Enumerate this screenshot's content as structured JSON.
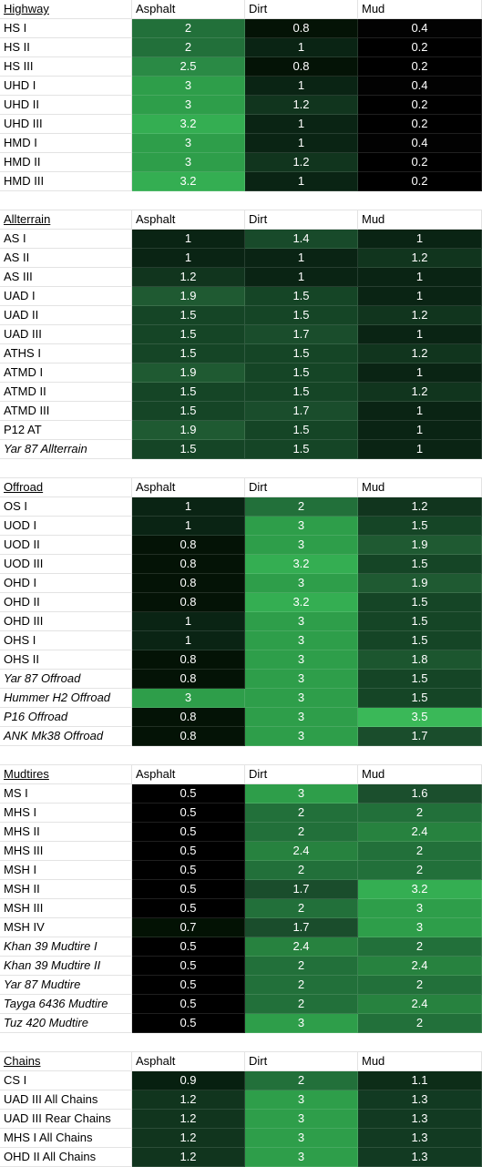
{
  "sections": [
    {
      "title": "Highway",
      "columns": [
        "Asphalt",
        "Dirt",
        "Mud"
      ],
      "rows": [
        {
          "name": "HS I",
          "italic": false,
          "values": [
            "2",
            "0.8",
            "0.4"
          ]
        },
        {
          "name": "HS II",
          "italic": false,
          "values": [
            "2",
            "1",
            "0.2"
          ]
        },
        {
          "name": "HS III",
          "italic": false,
          "values": [
            "2.5",
            "0.8",
            "0.2"
          ]
        },
        {
          "name": "UHD I",
          "italic": false,
          "values": [
            "3",
            "1",
            "0.4"
          ]
        },
        {
          "name": "UHD II",
          "italic": false,
          "values": [
            "3",
            "1.2",
            "0.2"
          ]
        },
        {
          "name": "UHD III",
          "italic": false,
          "values": [
            "3.2",
            "1",
            "0.2"
          ]
        },
        {
          "name": "HMD I",
          "italic": false,
          "values": [
            "3",
            "1",
            "0.4"
          ]
        },
        {
          "name": "HMD II",
          "italic": false,
          "values": [
            "3",
            "1.2",
            "0.2"
          ]
        },
        {
          "name": "HMD III",
          "italic": false,
          "values": [
            "3.2",
            "1",
            "0.2"
          ]
        }
      ]
    },
    {
      "title": "Allterrain",
      "columns": [
        "Asphalt",
        "Dirt",
        "Mud"
      ],
      "rows": [
        {
          "name": "AS I",
          "italic": false,
          "values": [
            "1",
            "1.4",
            "1"
          ]
        },
        {
          "name": "AS II",
          "italic": false,
          "values": [
            "1",
            "1",
            "1.2"
          ]
        },
        {
          "name": "AS III",
          "italic": false,
          "values": [
            "1.2",
            "1",
            "1"
          ]
        },
        {
          "name": "UAD I",
          "italic": false,
          "values": [
            "1.9",
            "1.5",
            "1"
          ]
        },
        {
          "name": "UAD II",
          "italic": false,
          "values": [
            "1.5",
            "1.5",
            "1.2"
          ]
        },
        {
          "name": "UAD III",
          "italic": false,
          "values": [
            "1.5",
            "1.7",
            "1"
          ]
        },
        {
          "name": "ATHS I",
          "italic": false,
          "values": [
            "1.5",
            "1.5",
            "1.2"
          ]
        },
        {
          "name": "ATMD I",
          "italic": false,
          "values": [
            "1.9",
            "1.5",
            "1"
          ]
        },
        {
          "name": "ATMD II",
          "italic": false,
          "values": [
            "1.5",
            "1.5",
            "1.2"
          ]
        },
        {
          "name": "ATMD III",
          "italic": false,
          "values": [
            "1.5",
            "1.7",
            "1"
          ]
        },
        {
          "name": "P12 AT",
          "italic": false,
          "values": [
            "1.9",
            "1.5",
            "1"
          ]
        },
        {
          "name": "Yar 87 Allterrain",
          "italic": true,
          "values": [
            "1.5",
            "1.5",
            "1"
          ]
        }
      ]
    },
    {
      "title": "Offroad",
      "columns": [
        "Asphalt",
        "Dirt",
        "Mud"
      ],
      "rows": [
        {
          "name": "OS I",
          "italic": false,
          "values": [
            "1",
            "2",
            "1.2"
          ]
        },
        {
          "name": "UOD I",
          "italic": false,
          "values": [
            "1",
            "3",
            "1.5"
          ]
        },
        {
          "name": "UOD II",
          "italic": false,
          "values": [
            "0.8",
            "3",
            "1.9"
          ]
        },
        {
          "name": "UOD III",
          "italic": false,
          "values": [
            "0.8",
            "3.2",
            "1.5"
          ]
        },
        {
          "name": "OHD I",
          "italic": false,
          "values": [
            "0.8",
            "3",
            "1.9"
          ]
        },
        {
          "name": "OHD II",
          "italic": false,
          "values": [
            "0.8",
            "3.2",
            "1.5"
          ]
        },
        {
          "name": "OHD III",
          "italic": false,
          "values": [
            "1",
            "3",
            "1.5"
          ]
        },
        {
          "name": "OHS I",
          "italic": false,
          "values": [
            "1",
            "3",
            "1.5"
          ]
        },
        {
          "name": "OHS II",
          "italic": false,
          "values": [
            "0.8",
            "3",
            "1.8"
          ]
        },
        {
          "name": "Yar 87 Offroad",
          "italic": true,
          "values": [
            "0.8",
            "3",
            "1.5"
          ]
        },
        {
          "name": "Hummer H2 Offroad",
          "italic": true,
          "values": [
            "3",
            "3",
            "1.5"
          ]
        },
        {
          "name": "P16 Offroad",
          "italic": true,
          "values": [
            "0.8",
            "3",
            "3.5"
          ]
        },
        {
          "name": "ANK Mk38 Offroad",
          "italic": true,
          "values": [
            "0.8",
            "3",
            "1.7"
          ]
        }
      ]
    },
    {
      "title": "Mudtires",
      "columns": [
        "Asphalt",
        "Dirt",
        "Mud"
      ],
      "rows": [
        {
          "name": "MS I",
          "italic": false,
          "values": [
            "0.5",
            "3",
            "1.6"
          ]
        },
        {
          "name": "MHS I",
          "italic": false,
          "values": [
            "0.5",
            "2",
            "2"
          ]
        },
        {
          "name": "MHS II",
          "italic": false,
          "values": [
            "0.5",
            "2",
            "2.4"
          ]
        },
        {
          "name": "MHS III",
          "italic": false,
          "values": [
            "0.5",
            "2.4",
            "2"
          ]
        },
        {
          "name": "MSH I",
          "italic": false,
          "values": [
            "0.5",
            "2",
            "2"
          ]
        },
        {
          "name": "MSH II",
          "italic": false,
          "values": [
            "0.5",
            "1.7",
            "3.2"
          ]
        },
        {
          "name": "MSH III",
          "italic": false,
          "values": [
            "0.5",
            "2",
            "3"
          ]
        },
        {
          "name": "MSH IV",
          "italic": false,
          "values": [
            "0.7",
            "1.7",
            "3"
          ]
        },
        {
          "name": "Khan 39 Mudtire I",
          "italic": true,
          "values": [
            "0.5",
            "2.4",
            "2"
          ]
        },
        {
          "name": "Khan 39 Mudtire II",
          "italic": true,
          "values": [
            "0.5",
            "2",
            "2.4"
          ]
        },
        {
          "name": "Yar 87 Mudtire",
          "italic": true,
          "values": [
            "0.5",
            "2",
            "2"
          ]
        },
        {
          "name": "Tayga 6436 Mudtire",
          "italic": true,
          "values": [
            "0.5",
            "2",
            "2.4"
          ]
        },
        {
          "name": "Tuz 420 Mudtire",
          "italic": true,
          "values": [
            "0.5",
            "3",
            "2"
          ]
        }
      ]
    },
    {
      "title": "Chains",
      "columns": [
        "Asphalt",
        "Dirt",
        "Mud"
      ],
      "rows": [
        {
          "name": "CS I",
          "italic": false,
          "values": [
            "0.9",
            "2",
            "1.1"
          ]
        },
        {
          "name": "UAD III All Chains",
          "italic": false,
          "values": [
            "1.2",
            "3",
            "1.3"
          ]
        },
        {
          "name": "UAD III Rear Chains",
          "italic": false,
          "values": [
            "1.2",
            "3",
            "1.3"
          ]
        },
        {
          "name": "MHS I All Chains",
          "italic": false,
          "values": [
            "1.2",
            "3",
            "1.3"
          ]
        },
        {
          "name": "OHD II All Chains",
          "italic": false,
          "values": [
            "1.2",
            "3",
            "1.3"
          ]
        }
      ]
    }
  ],
  "heat_colors": {
    "0.2": "#000000",
    "0.4": "#020202",
    "0.5": "#000000",
    "0.7": "#031204",
    "0.8": "#041306",
    "0.9": "#072010",
    "1": "#0a2414",
    "1.1": "#0d2d18",
    "1.2": "#11351e",
    "1.3": "#123a22",
    "1.4": "#184a2a",
    "1.5": "#154526",
    "1.6": "#1b4f2d",
    "1.7": "#1a4d2c",
    "1.8": "#1c562f",
    "1.9": "#1f5a32",
    "2": "#22703a",
    "2.4": "#27823f",
    "2.5": "#2a8a45",
    "3": "#2e9e4a",
    "3.2": "#34ae52",
    "3.5": "#3ab858"
  }
}
